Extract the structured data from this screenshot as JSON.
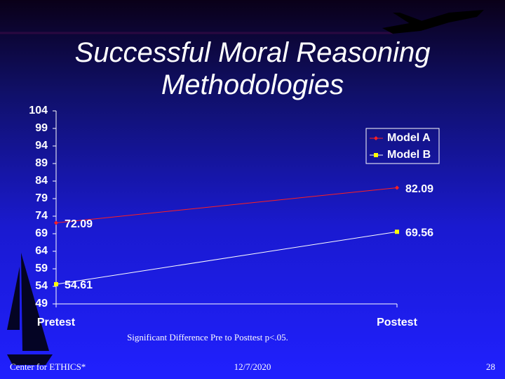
{
  "chart_data": {
    "type": "line",
    "title": "Successful Moral Reasoning Methodologies",
    "categories": [
      "Pretest",
      "Postest"
    ],
    "series": [
      {
        "name": "Model A",
        "color": "#ff2020",
        "marker_color": "#ff2020",
        "values": [
          72.09,
          82.09
        ]
      },
      {
        "name": "Model B",
        "color": "#ffffff",
        "marker_color": "#ffff00",
        "values": [
          54.61,
          69.56
        ]
      }
    ],
    "ylim": [
      49,
      104
    ],
    "yticks": [
      49,
      54,
      59,
      64,
      69,
      74,
      79,
      84,
      89,
      94,
      99,
      104
    ],
    "data_labels": true,
    "legend": "upper right",
    "annotation": "Significant Difference Pre to Posttest p<.05."
  },
  "footer": {
    "left": "Center for ETHICS*",
    "center": "12/7/2020",
    "right": "28"
  }
}
